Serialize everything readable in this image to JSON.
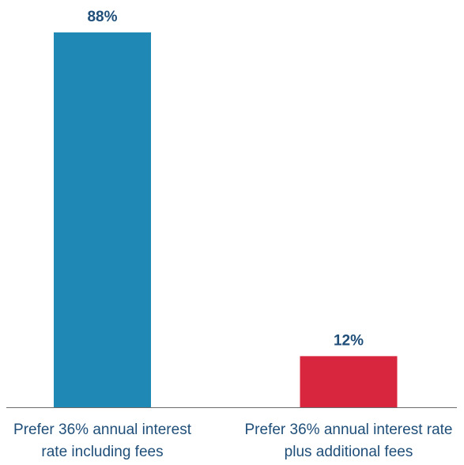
{
  "chart_data": {
    "type": "bar",
    "categories": [
      [
        "Prefer 36% annual interest",
        "rate including fees"
      ],
      [
        "Prefer 36% annual interest rate",
        "plus additional fees"
      ]
    ],
    "values": [
      88,
      12
    ],
    "data_labels": [
      "88%",
      "12%"
    ],
    "colors": [
      "#1f88b4",
      "#d7263d"
    ],
    "ylim": [
      0,
      100
    ],
    "grid": false,
    "legend": "none"
  }
}
